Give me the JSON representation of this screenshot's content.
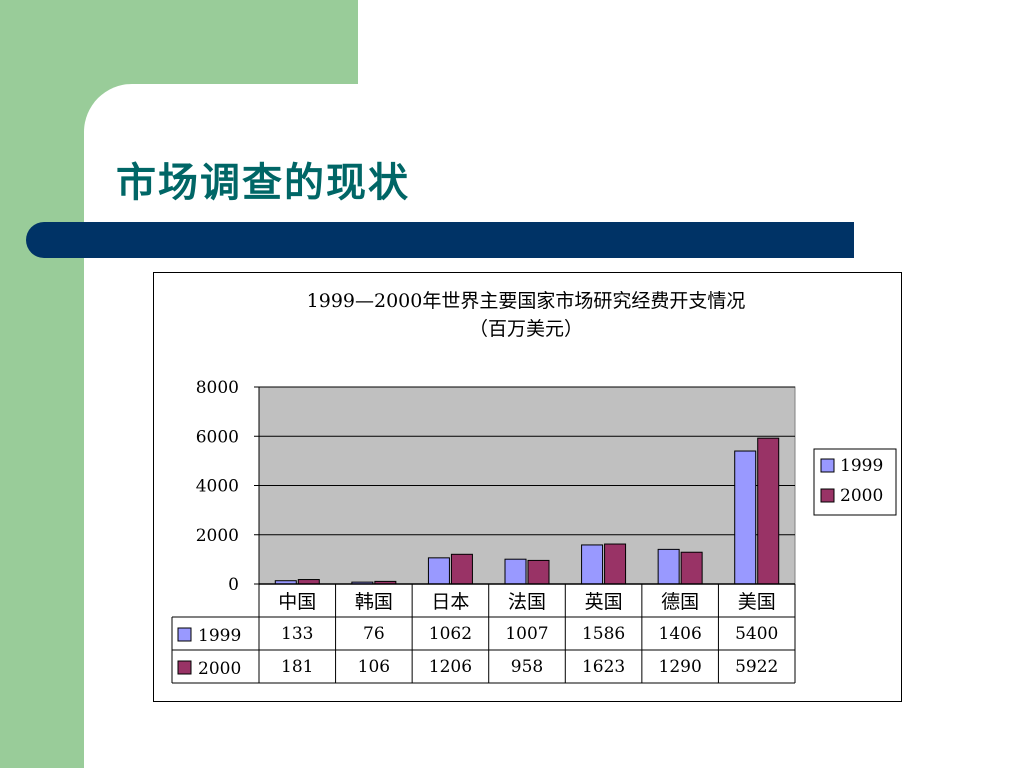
{
  "slide": {
    "title": "市场调查的现状"
  },
  "colors": {
    "sidebar_green": "#99cc99",
    "title_teal": "#006666",
    "rule_navy": "#003366",
    "series_1999": "#9999ff",
    "series_2000": "#993366",
    "plot_bg": "#c0c0c0"
  },
  "chart_data": {
    "type": "bar",
    "title": "1999—2000年世界主要国家市场研究经费开支情况",
    "subtitle": "（百万美元）",
    "categories": [
      "中国",
      "韩国",
      "日本",
      "法国",
      "英国",
      "德国",
      "美国"
    ],
    "series": [
      {
        "name": "1999",
        "values": [
          133,
          76,
          1062,
          1007,
          1586,
          1406,
          5400
        ]
      },
      {
        "name": "2000",
        "values": [
          181,
          106,
          1206,
          958,
          1623,
          1290,
          5922
        ]
      }
    ],
    "ylim": [
      0,
      8000
    ],
    "yticks": [
      "0",
      "2000",
      "4000",
      "6000",
      "8000"
    ],
    "grid": true,
    "legend": "right",
    "data_table": true
  }
}
